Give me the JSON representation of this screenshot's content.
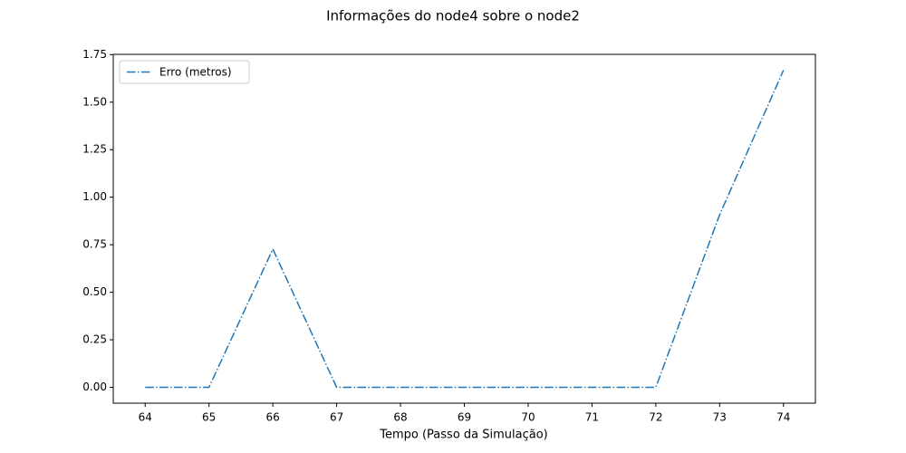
{
  "chart_data": {
    "type": "line",
    "title": "Informações do node4 sobre o node2",
    "xlabel": "Tempo (Passo da Simulação)",
    "x": [
      64,
      65,
      66,
      67,
      68,
      69,
      70,
      71,
      72,
      73,
      74
    ],
    "series": [
      {
        "name": "Erro (metros)",
        "color": "#1f77b4",
        "values": [
          0,
          0,
          0.727,
          0,
          0,
          0,
          0,
          0,
          0,
          0.908,
          1.668
        ]
      }
    ],
    "xlim": [
      63.5,
      74.5
    ],
    "xticks": [
      64,
      65,
      66,
      67,
      68,
      69,
      70,
      71,
      72,
      73,
      74
    ],
    "ylim": [
      -0.0834,
      1.7514
    ],
    "yticks": [
      {
        "value": 0,
        "label": "0.00"
      },
      {
        "value": 0.25,
        "label": "0.25"
      },
      {
        "value": 0.5,
        "label": "0.50"
      },
      {
        "value": 0.75,
        "label": "0.75"
      },
      {
        "value": 1,
        "label": "1.00"
      },
      {
        "value": 1.25,
        "label": "1.25"
      },
      {
        "value": 1.5,
        "label": "1.50"
      },
      {
        "value": 1.75,
        "label": "1.75"
      }
    ],
    "grid": false,
    "legend": "upper-left"
  }
}
